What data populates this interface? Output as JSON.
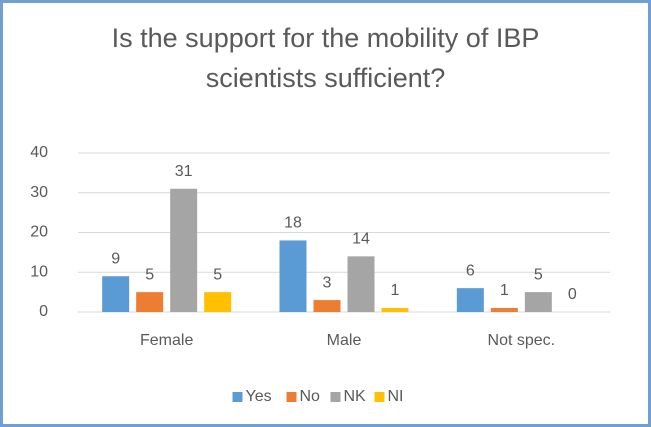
{
  "chart_data": {
    "type": "bar",
    "title": "Is the support for the mobility of IBP scientists sufficient?",
    "categories": [
      "Female",
      "Male",
      "Not spec."
    ],
    "series": [
      {
        "name": "Yes",
        "color": "#5b9bd5",
        "values": [
          9,
          18,
          6
        ]
      },
      {
        "name": "No",
        "color": "#ed7d31",
        "values": [
          5,
          3,
          1
        ]
      },
      {
        "name": "NK",
        "color": "#a5a5a5",
        "values": [
          31,
          14,
          5
        ]
      },
      {
        "name": "NI",
        "color": "#ffc000",
        "values": [
          5,
          1,
          0
        ]
      }
    ],
    "ylim": [
      0,
      40
    ],
    "yticks": [
      0,
      10,
      20,
      30,
      40
    ],
    "grid": true,
    "legend": "bottom"
  }
}
